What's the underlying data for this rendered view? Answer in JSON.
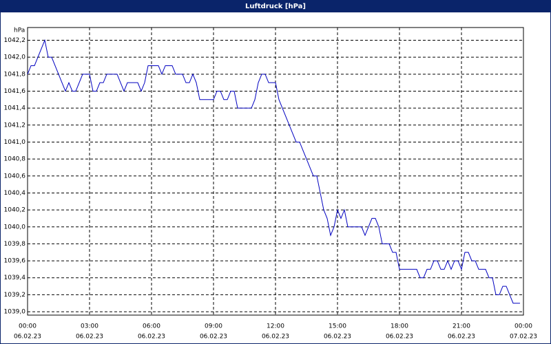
{
  "chart_data": {
    "type": "line",
    "title": "Luftdruck [hPa]",
    "y_label": "hPa",
    "xlim": [
      0,
      1440
    ],
    "ylim": [
      1038.96,
      1042.35
    ],
    "xticks": [
      {
        "value": 0,
        "label": "00:00",
        "sublabel": "06.02.23"
      },
      {
        "value": 180,
        "label": "03:00",
        "sublabel": "06.02.23"
      },
      {
        "value": 360,
        "label": "06:00",
        "sublabel": "06.02.23"
      },
      {
        "value": 540,
        "label": "09:00",
        "sublabel": "06.02.23"
      },
      {
        "value": 720,
        "label": "12:00",
        "sublabel": "06.02.23"
      },
      {
        "value": 900,
        "label": "15:00",
        "sublabel": "06.02.23"
      },
      {
        "value": 1080,
        "label": "18:00",
        "sublabel": "06.02.23"
      },
      {
        "value": 1260,
        "label": "21:00",
        "sublabel": "06.02.23"
      },
      {
        "value": 1440,
        "label": "00:00",
        "sublabel": "07.02.23"
      }
    ],
    "yticks": [
      {
        "value": 1039.0,
        "label": "1039,0"
      },
      {
        "value": 1039.2,
        "label": "1039,2"
      },
      {
        "value": 1039.4,
        "label": "1039,4"
      },
      {
        "value": 1039.6,
        "label": "1039,6"
      },
      {
        "value": 1039.8,
        "label": "1039,8"
      },
      {
        "value": 1040.0,
        "label": "1040,0"
      },
      {
        "value": 1040.2,
        "label": "1040,2"
      },
      {
        "value": 1040.4,
        "label": "1040,4"
      },
      {
        "value": 1040.6,
        "label": "1040,6"
      },
      {
        "value": 1040.8,
        "label": "1040,8"
      },
      {
        "value": 1041.0,
        "label": "1041,0"
      },
      {
        "value": 1041.2,
        "label": "1041,2"
      },
      {
        "value": 1041.4,
        "label": "1041,4"
      },
      {
        "value": 1041.6,
        "label": "1041,6"
      },
      {
        "value": 1041.8,
        "label": "1041,8"
      },
      {
        "value": 1042.0,
        "label": "1042,0"
      },
      {
        "value": 1042.2,
        "label": "1042,2"
      }
    ],
    "grid": true,
    "x": [
      0,
      10,
      20,
      30,
      40,
      50,
      60,
      70,
      80,
      90,
      100,
      110,
      120,
      130,
      140,
      150,
      160,
      170,
      180,
      190,
      200,
      210,
      220,
      230,
      240,
      250,
      260,
      270,
      280,
      290,
      300,
      310,
      320,
      330,
      340,
      350,
      360,
      370,
      380,
      390,
      400,
      410,
      420,
      430,
      440,
      450,
      460,
      470,
      480,
      490,
      500,
      510,
      520,
      530,
      540,
      550,
      560,
      570,
      580,
      590,
      600,
      610,
      620,
      630,
      640,
      650,
      660,
      670,
      680,
      690,
      700,
      710,
      720,
      730,
      740,
      750,
      760,
      770,
      780,
      790,
      800,
      810,
      820,
      830,
      840,
      850,
      860,
      870,
      880,
      890,
      900,
      910,
      920,
      930,
      940,
      950,
      960,
      970,
      980,
      990,
      1000,
      1010,
      1020,
      1030,
      1040,
      1050,
      1060,
      1070,
      1080,
      1090,
      1100,
      1110,
      1120,
      1130,
      1140,
      1150,
      1160,
      1170,
      1180,
      1190,
      1200,
      1210,
      1220,
      1230,
      1240,
      1250,
      1260,
      1270,
      1280,
      1290,
      1300,
      1310,
      1320,
      1330,
      1340,
      1350,
      1360,
      1370,
      1380,
      1390,
      1400,
      1410,
      1420,
      1430
    ],
    "series": [
      {
        "name": "Luftdruck",
        "color": "#0000c0",
        "values": [
          1041.8,
          1041.9,
          1041.9,
          1042.0,
          1042.1,
          1042.2,
          1042.0,
          1042.0,
          1041.9,
          1041.8,
          1041.7,
          1041.6,
          1041.7,
          1041.6,
          1041.6,
          1041.7,
          1041.8,
          1041.8,
          1041.8,
          1041.6,
          1041.6,
          1041.7,
          1041.7,
          1041.8,
          1041.8,
          1041.8,
          1041.8,
          1041.7,
          1041.6,
          1041.7,
          1041.7,
          1041.7,
          1041.7,
          1041.6,
          1041.7,
          1041.9,
          1041.9,
          1041.9,
          1041.9,
          1041.8,
          1041.9,
          1041.9,
          1041.9,
          1041.8,
          1041.8,
          1041.8,
          1041.7,
          1041.7,
          1041.8,
          1041.7,
          1041.5,
          1041.5,
          1041.5,
          1041.5,
          1041.5,
          1041.6,
          1041.6,
          1041.5,
          1041.5,
          1041.6,
          1041.6,
          1041.4,
          1041.4,
          1041.4,
          1041.4,
          1041.4,
          1041.5,
          1041.7,
          1041.8,
          1041.8,
          1041.7,
          1041.7,
          1041.7,
          1041.5,
          1041.4,
          1041.3,
          1041.2,
          1041.1,
          1041.0,
          1041.0,
          1040.9,
          1040.8,
          1040.7,
          1040.6,
          1040.6,
          1040.4,
          1040.2,
          1040.1,
          1039.9,
          1040.0,
          1040.2,
          1040.1,
          1040.2,
          1040.0,
          1040.0,
          1040.0,
          1040.0,
          1040.0,
          1039.9,
          1040.0,
          1040.1,
          1040.1,
          1040.0,
          1039.8,
          1039.8,
          1039.8,
          1039.7,
          1039.7,
          1039.5,
          1039.5,
          1039.5,
          1039.5,
          1039.5,
          1039.5,
          1039.4,
          1039.4,
          1039.5,
          1039.5,
          1039.6,
          1039.6,
          1039.5,
          1039.5,
          1039.6,
          1039.5,
          1039.6,
          1039.6,
          1039.5,
          1039.7,
          1039.7,
          1039.6,
          1039.6,
          1039.5,
          1039.5,
          1039.5,
          1039.4,
          1039.4,
          1039.2,
          1039.2,
          1039.3,
          1039.3,
          1039.2,
          1039.1,
          1039.1,
          1039.1
        ]
      }
    ]
  }
}
